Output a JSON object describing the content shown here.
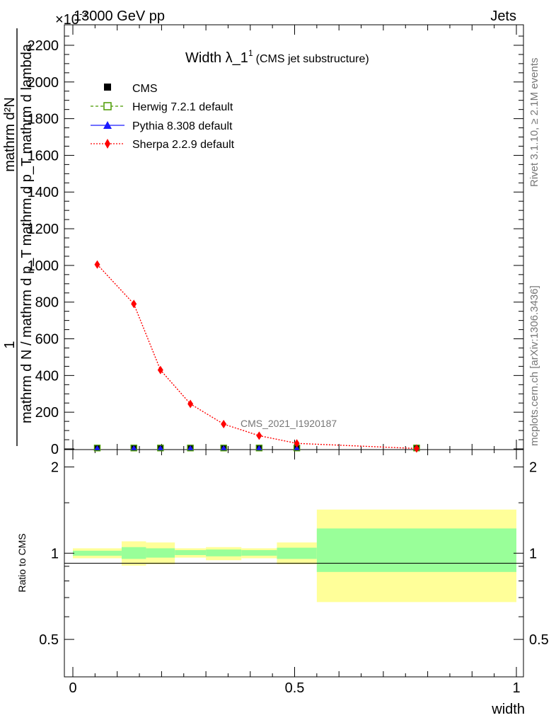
{
  "header": {
    "left": "13000 GeV pp",
    "right": "Jets"
  },
  "side_labels": {
    "rivet": "Rivet 3.1.10, ≥ 2.1M events",
    "mcplots": "mcplots.cern.ch [arXiv:1306.3436]"
  },
  "top_plot": {
    "title_main": "Width λ_1",
    "title_sup": "1",
    "title_sub": "(CMS jet substructure)",
    "exponent_label": "×10",
    "exponent_sup": "-3",
    "ylabel_top": "1",
    "ylabel_bottom": "mathrm d N / mathrm d p_T mathrm d p_T mathrm d lambda",
    "ylabel_mid": "mathrm d²N",
    "watermark": "CMS_2021_I1920187"
  },
  "bottom_plot": {
    "ylabel": "Ratio to CMS",
    "xlabel": "width"
  },
  "legend": [
    {
      "label": "CMS",
      "color": "#000000",
      "marker": "filled-square"
    },
    {
      "label": "Herwig 7.2.1 default",
      "color": "#4a9a00",
      "marker": "open-square"
    },
    {
      "label": "Pythia 8.308 default",
      "color": "#1a1aff",
      "marker": "filled-triangle"
    },
    {
      "label": "Sherpa 2.2.9 default",
      "color": "#ff0000",
      "marker": "filled-diamond"
    }
  ],
  "chart_data": [
    {
      "type": "line",
      "panel": "main",
      "xlim": [
        0,
        1
      ],
      "ylim": [
        0,
        2250
      ],
      "y_ticks": [
        0,
        200,
        400,
        600,
        800,
        1000,
        1200,
        1400,
        1600,
        1800,
        2000,
        2200
      ],
      "x_bin_edges": [
        0,
        0.11,
        0.165,
        0.23,
        0.3,
        0.38,
        0.46,
        0.55,
        1.0
      ],
      "series": [
        {
          "name": "CMS",
          "x": [
            0.055,
            0.1375,
            0.1975,
            0.265,
            0.34,
            0.42,
            0.505,
            0.775
          ],
          "y": [
            1,
            1,
            1,
            1,
            1,
            1,
            1,
            1
          ]
        },
        {
          "name": "Herwig 7.2.1 default",
          "x": [
            0.055,
            0.1375,
            0.1975,
            0.265,
            0.34,
            0.42,
            0.505,
            0.775
          ],
          "y": [
            1,
            1,
            1,
            1,
            1,
            1,
            1,
            1
          ]
        },
        {
          "name": "Pythia 8.308 default",
          "x": [
            0.055,
            0.1375,
            0.1975,
            0.265,
            0.34,
            0.42,
            0.505,
            0.775
          ],
          "y": [
            1,
            1,
            1,
            1,
            1,
            1,
            1,
            1
          ]
        },
        {
          "name": "Sherpa 2.2.9 default",
          "x": [
            0.055,
            0.1375,
            0.1975,
            0.265,
            0.34,
            0.42,
            0.505,
            0.775
          ],
          "y": [
            1005,
            790,
            430,
            245,
            135,
            72,
            30,
            2
          ]
        }
      ]
    },
    {
      "type": "area",
      "panel": "ratio",
      "xlim": [
        0,
        1
      ],
      "ylim": [
        0.37,
        2.3
      ],
      "y_scale": "log",
      "y_ticks": [
        0.5,
        1,
        2
      ],
      "x_ticks": [
        0,
        0.5,
        1
      ],
      "x_tick_labels": [
        "0",
        "0.5",
        "1"
      ],
      "reference": 1,
      "bands": [
        {
          "x0": 0.0,
          "x1": 0.11,
          "green": [
            0.98,
            1.02
          ],
          "yellow": [
            0.96,
            1.04
          ]
        },
        {
          "x0": 0.11,
          "x1": 0.165,
          "green": [
            0.955,
            1.05
          ],
          "yellow": [
            0.905,
            1.1
          ]
        },
        {
          "x0": 0.165,
          "x1": 0.23,
          "green": [
            0.965,
            1.04
          ],
          "yellow": [
            0.915,
            1.09
          ]
        },
        {
          "x0": 0.23,
          "x1": 0.3,
          "green": [
            0.985,
            1.025
          ],
          "yellow": [
            0.965,
            1.04
          ]
        },
        {
          "x0": 0.3,
          "x1": 0.38,
          "green": [
            0.975,
            1.03
          ],
          "yellow": [
            0.945,
            1.05
          ]
        },
        {
          "x0": 0.38,
          "x1": 0.46,
          "green": [
            0.98,
            1.025
          ],
          "yellow": [
            0.96,
            1.04
          ]
        },
        {
          "x0": 0.46,
          "x1": 0.55,
          "green": [
            0.955,
            1.045
          ],
          "yellow": [
            0.915,
            1.09
          ]
        },
        {
          "x0": 0.55,
          "x1": 1.0,
          "green": [
            0.86,
            1.22
          ],
          "yellow": [
            0.675,
            1.42
          ]
        }
      ]
    }
  ]
}
